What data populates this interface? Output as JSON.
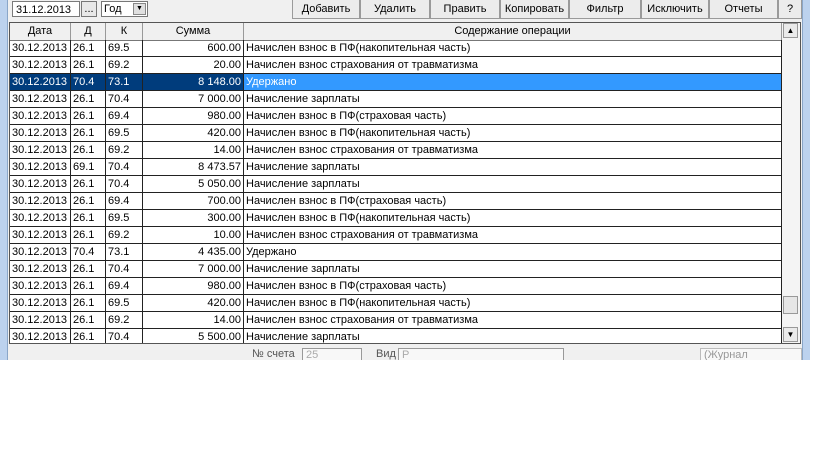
{
  "toolbar": {
    "date": "31.12.2013",
    "dots": "...",
    "period": "Год",
    "buttons": [
      "Добавить",
      "Удалить",
      "Править",
      "Копировать",
      "Фильтр",
      "Исключить",
      "Отчеты",
      "?"
    ]
  },
  "grid": {
    "headers": [
      "Дата",
      "Д",
      "К",
      "Сумма",
      "Содержание операции"
    ],
    "rows": [
      [
        "30.12.2013",
        "26.1",
        "69.5",
        "600.00",
        "Начислен взнос в ПФ(накопительная часть)"
      ],
      [
        "30.12.2013",
        "26.1",
        "69.2",
        "20.00",
        "Начислен взнос страхования от травматизма"
      ],
      [
        "30.12.2013",
        "70.4",
        "73.1",
        "8 148.00",
        "Удержано"
      ],
      [
        "30.12.2013",
        "26.1",
        "70.4",
        "7 000.00",
        "Начисление зарплаты"
      ],
      [
        "30.12.2013",
        "26.1",
        "69.4",
        "980.00",
        "Начислен взнос в ПФ(страховая часть)"
      ],
      [
        "30.12.2013",
        "26.1",
        "69.5",
        "420.00",
        "Начислен взнос в ПФ(накопительная часть)"
      ],
      [
        "30.12.2013",
        "26.1",
        "69.2",
        "14.00",
        "Начислен взнос страхования от травматизма"
      ],
      [
        "30.12.2013",
        "69.1",
        "70.4",
        "8 473.57",
        "Начисление зарплаты"
      ],
      [
        "30.12.2013",
        "26.1",
        "70.4",
        "5 050.00",
        "Начисление зарплаты"
      ],
      [
        "30.12.2013",
        "26.1",
        "69.4",
        "700.00",
        "Начислен взнос в ПФ(страховая часть)"
      ],
      [
        "30.12.2013",
        "26.1",
        "69.5",
        "300.00",
        "Начислен взнос в ПФ(накопительная часть)"
      ],
      [
        "30.12.2013",
        "26.1",
        "69.2",
        "10.00",
        "Начислен взнос страхования от травматизма"
      ],
      [
        "30.12.2013",
        "70.4",
        "73.1",
        "4 435.00",
        "Удержано"
      ],
      [
        "30.12.2013",
        "26.1",
        "70.4",
        "7 000.00",
        "Начисление зарплаты"
      ],
      [
        "30.12.2013",
        "26.1",
        "69.4",
        "980.00",
        "Начислен взнос в ПФ(страховая часть)"
      ],
      [
        "30.12.2013",
        "26.1",
        "69.5",
        "420.00",
        "Начислен взнос в ПФ(накопительная часть)"
      ],
      [
        "30.12.2013",
        "26.1",
        "69.2",
        "14.00",
        "Начислен взнос страхования от травматизма"
      ],
      [
        "30.12.2013",
        "26.1",
        "70.4",
        "5 500.00",
        "Начисление зарплаты"
      ]
    ],
    "selected_row": 2
  },
  "footer": {
    "label1": "№ счета",
    "value1": "25",
    "label2": "Вид",
    "value2": "Р",
    "journal": "(Журнал операций)"
  },
  "colors": {
    "selection": "#003c7c",
    "selection_text_cell": "#3399ff"
  }
}
